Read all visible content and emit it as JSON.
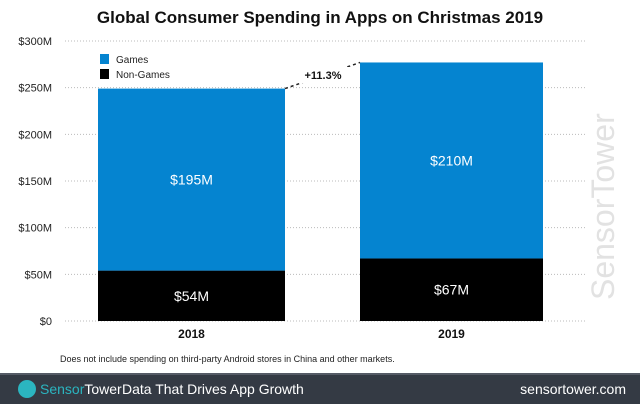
{
  "chart_data": {
    "type": "bar",
    "stacked": true,
    "title": "Global Consumer Spending in Apps on Christmas 2019",
    "categories": [
      "2018",
      "2019"
    ],
    "series": [
      {
        "name": "Non-Games",
        "values": [
          54,
          67
        ],
        "labels": [
          "$54M",
          "$67M"
        ],
        "color": "#000000"
      },
      {
        "name": "Games",
        "values": [
          195,
          210
        ],
        "labels": [
          "$195M",
          "$210M"
        ],
        "color": "#0584d0"
      }
    ],
    "ylim": [
      0,
      300
    ],
    "yticks": [
      0,
      50,
      100,
      150,
      200,
      250,
      300
    ],
    "ytick_labels": [
      "$0",
      "$50M",
      "$100M",
      "$150M",
      "$200M",
      "$250M",
      "$300M"
    ],
    "grid": true,
    "legend": "top-left",
    "annotation": "+11.3%"
  },
  "note": "Does not include spending on third-party Android stores in China and other markets.",
  "footer": {
    "brand_a": "Sensor",
    "brand_b": "Tower",
    "tagline": "Data That Drives App Growth",
    "url": "sensortower.com"
  },
  "watermark": "SensorTower"
}
